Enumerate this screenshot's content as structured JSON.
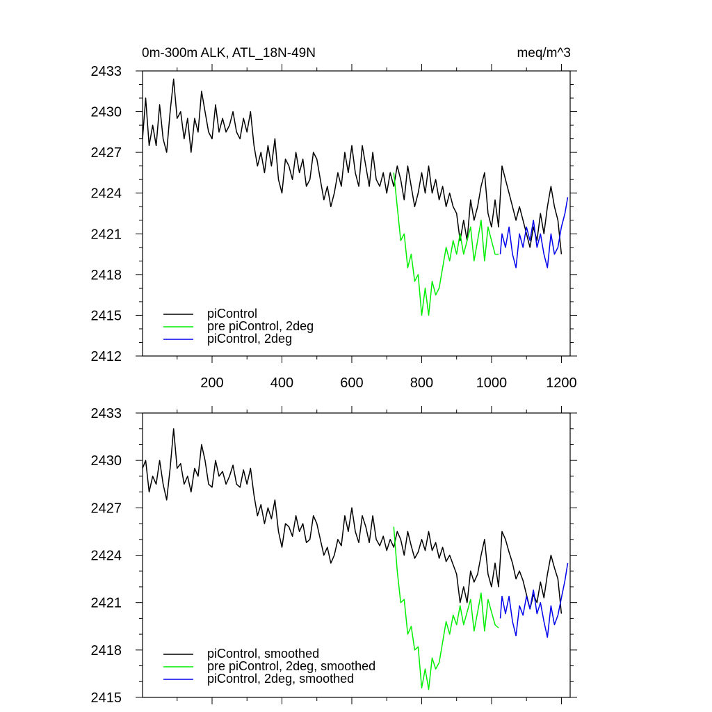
{
  "colors": {
    "pic": "#000000",
    "pre": "#00ee00",
    "pic2": "#0000ee",
    "axis": "#000000"
  },
  "chart_data": [
    {
      "type": "line",
      "title": "0m-300m ALK, ATL_18N-49N",
      "units": "meq/m^3",
      "xlim": [
        1,
        1225
      ],
      "ylim": [
        2412,
        2433
      ],
      "xticks": [
        200,
        400,
        600,
        800,
        1000,
        1200
      ],
      "xtick_labels": [
        "200",
        "400",
        "600",
        "800",
        "1000",
        "1200"
      ],
      "yticks": [
        2412,
        2415,
        2418,
        2421,
        2424,
        2427,
        2430,
        2433
      ],
      "ytick_labels": [
        "2412",
        "2415",
        "2418",
        "2421",
        "2424",
        "2427",
        "2430",
        "2433"
      ],
      "legend": [
        "piControl",
        "pre piControl, 2deg",
        "piControl, 2deg"
      ],
      "legend_position": "bottom-left",
      "series": [
        {
          "name": "piControl",
          "color": "#000000",
          "x": [
            1,
            10,
            20,
            30,
            40,
            50,
            60,
            70,
            80,
            90,
            100,
            110,
            120,
            130,
            140,
            150,
            160,
            170,
            180,
            190,
            200,
            210,
            220,
            230,
            240,
            250,
            260,
            270,
            280,
            290,
            300,
            310,
            320,
            330,
            340,
            350,
            360,
            370,
            380,
            390,
            400,
            410,
            420,
            430,
            440,
            450,
            460,
            470,
            480,
            490,
            500,
            510,
            520,
            530,
            540,
            550,
            560,
            570,
            580,
            590,
            600,
            610,
            620,
            630,
            640,
            650,
            660,
            670,
            680,
            690,
            700,
            710,
            720,
            730,
            740,
            750,
            760,
            770,
            780,
            790,
            800,
            810,
            820,
            830,
            840,
            850,
            860,
            870,
            880,
            890,
            900,
            910,
            920,
            930,
            940,
            950,
            960,
            970,
            980,
            990,
            1000,
            1010,
            1020,
            1030,
            1040,
            1050,
            1060,
            1070,
            1080,
            1090,
            1100,
            1110,
            1120,
            1130,
            1140,
            1150,
            1160,
            1170,
            1180,
            1190,
            1200
          ],
          "y": [
            2428.0,
            2431.0,
            2427.5,
            2429.0,
            2427.5,
            2430.5,
            2428.0,
            2427.0,
            2430.0,
            2432.4,
            2429.5,
            2430.0,
            2428.0,
            2429.5,
            2427.0,
            2429.5,
            2428.5,
            2431.5,
            2430.0,
            2428.5,
            2428.0,
            2430.5,
            2428.5,
            2429.5,
            2428.5,
            2429.0,
            2430.0,
            2428.5,
            2428.0,
            2429.5,
            2428.5,
            2430.0,
            2427.5,
            2426.0,
            2427.0,
            2425.5,
            2427.5,
            2426.0,
            2428.0,
            2425.0,
            2424.0,
            2426.5,
            2426.0,
            2425.0,
            2427.0,
            2425.5,
            2426.5,
            2424.5,
            2425.0,
            2427.0,
            2426.5,
            2425.0,
            2423.5,
            2424.5,
            2423.0,
            2424.0,
            2425.5,
            2424.5,
            2427.0,
            2425.5,
            2427.5,
            2425.5,
            2424.5,
            2427.5,
            2426.0,
            2424.5,
            2427.0,
            2425.0,
            2424.5,
            2425.5,
            2424.0,
            2425.5,
            2424.5,
            2426.0,
            2425.0,
            2423.5,
            2426.0,
            2424.5,
            2423.0,
            2424.0,
            2425.5,
            2424.0,
            2426.0,
            2424.0,
            2425.0,
            2423.5,
            2424.5,
            2423.0,
            2424.0,
            2423.0,
            2422.5,
            2420.5,
            2422.0,
            2420.5,
            2423.5,
            2422.0,
            2423.0,
            2424.5,
            2425.5,
            2422.5,
            2421.5,
            2423.5,
            2421.5,
            2426.0,
            2425.0,
            2424.0,
            2423.0,
            2422.0,
            2423.0,
            2422.0,
            2421.0,
            2420.0,
            2421.5,
            2420.5,
            2422.5,
            2421.0,
            2423.0,
            2424.5,
            2423.0,
            2422.0,
            2419.5
          ]
        },
        {
          "name": "pre piControl, 2deg",
          "color": "#00ee00",
          "x": [
            720,
            730,
            740,
            750,
            760,
            770,
            780,
            790,
            800,
            810,
            820,
            830,
            840,
            850,
            860,
            870,
            880,
            890,
            900,
            910,
            920,
            930,
            940,
            950,
            960,
            970,
            980,
            990,
            1000,
            1010,
            1020
          ],
          "y": [
            2425.5,
            2423.0,
            2420.5,
            2421.0,
            2418.5,
            2419.5,
            2417.5,
            2418.0,
            2415.0,
            2417.0,
            2415.0,
            2417.5,
            2416.5,
            2417.0,
            2418.5,
            2420.0,
            2419.0,
            2420.5,
            2419.5,
            2421.0,
            2419.5,
            2420.5,
            2421.5,
            2419.0,
            2420.5,
            2422.0,
            2419.0,
            2421.5,
            2420.5,
            2419.5,
            2419.5
          ]
        },
        {
          "name": "piControl, 2deg",
          "color": "#0000ee",
          "x": [
            1025,
            1030,
            1040,
            1050,
            1060,
            1070,
            1080,
            1090,
            1100,
            1110,
            1120,
            1130,
            1140,
            1150,
            1160,
            1170,
            1180,
            1190,
            1200,
            1210,
            1218
          ],
          "y": [
            2419.5,
            2421.0,
            2420.0,
            2421.5,
            2419.5,
            2418.5,
            2421.0,
            2420.0,
            2421.5,
            2420.5,
            2422.0,
            2420.0,
            2421.0,
            2419.5,
            2418.5,
            2421.0,
            2419.5,
            2420.0,
            2421.5,
            2422.5,
            2423.7
          ]
        }
      ]
    },
    {
      "type": "line",
      "title": "",
      "units": "",
      "xlim": [
        1,
        1225
      ],
      "ylim": [
        2415,
        2433
      ],
      "xticks": [
        200,
        400,
        600,
        800,
        1000,
        1200
      ],
      "xtick_labels": [],
      "yticks": [
        2415,
        2418,
        2421,
        2424,
        2427,
        2430,
        2433
      ],
      "ytick_labels": [
        "2415",
        "2418",
        "2421",
        "2424",
        "2427",
        "2430",
        "2433"
      ],
      "legend": [
        "piControl, smoothed",
        "pre piControl, 2deg, smoothed",
        "piControl, 2deg, smoothed"
      ],
      "legend_position": "bottom-left",
      "series": [
        {
          "name": "piControl, smoothed",
          "color": "#000000",
          "x": [
            1,
            10,
            20,
            30,
            40,
            50,
            60,
            70,
            80,
            90,
            100,
            110,
            120,
            130,
            140,
            150,
            160,
            170,
            180,
            190,
            200,
            210,
            220,
            230,
            240,
            250,
            260,
            270,
            280,
            290,
            300,
            310,
            320,
            330,
            340,
            350,
            360,
            370,
            380,
            390,
            400,
            410,
            420,
            430,
            440,
            450,
            460,
            470,
            480,
            490,
            500,
            510,
            520,
            530,
            540,
            550,
            560,
            570,
            580,
            590,
            600,
            610,
            620,
            630,
            640,
            650,
            660,
            670,
            680,
            690,
            700,
            710,
            720,
            730,
            740,
            750,
            760,
            770,
            780,
            790,
            800,
            810,
            820,
            830,
            840,
            850,
            860,
            870,
            880,
            890,
            900,
            910,
            920,
            930,
            940,
            950,
            960,
            970,
            980,
            990,
            1000,
            1010,
            1020,
            1030,
            1040,
            1050,
            1060,
            1070,
            1080,
            1090,
            1100,
            1110,
            1120,
            1130,
            1140,
            1150,
            1160,
            1170,
            1180,
            1190,
            1200
          ],
          "y": [
            2429.5,
            2430.0,
            2428.0,
            2429.0,
            2428.5,
            2430.0,
            2428.5,
            2427.5,
            2429.5,
            2432.0,
            2429.5,
            2429.8,
            2428.5,
            2429.0,
            2428.0,
            2429.5,
            2429.0,
            2431.0,
            2430.0,
            2428.5,
            2428.3,
            2430.0,
            2429.0,
            2429.3,
            2428.5,
            2429.0,
            2429.7,
            2428.5,
            2428.3,
            2429.4,
            2428.5,
            2429.5,
            2427.8,
            2426.5,
            2427.2,
            2426.0,
            2427.0,
            2426.3,
            2427.5,
            2425.5,
            2424.5,
            2426.0,
            2425.8,
            2425.2,
            2426.5,
            2425.5,
            2426.0,
            2424.8,
            2425.0,
            2426.5,
            2426.0,
            2425.0,
            2424.0,
            2424.5,
            2423.5,
            2424.0,
            2425.0,
            2424.6,
            2426.5,
            2425.5,
            2427.0,
            2425.5,
            2424.8,
            2426.5,
            2425.8,
            2424.8,
            2426.5,
            2425.0,
            2424.6,
            2425.2,
            2424.3,
            2425.0,
            2424.5,
            2425.5,
            2425.0,
            2424.0,
            2425.5,
            2424.6,
            2423.8,
            2424.2,
            2425.0,
            2424.3,
            2425.5,
            2424.3,
            2424.8,
            2423.8,
            2424.5,
            2423.6,
            2424.0,
            2423.4,
            2422.8,
            2421.0,
            2422.0,
            2421.0,
            2423.0,
            2422.3,
            2422.8,
            2424.0,
            2425.0,
            2422.8,
            2422.0,
            2423.5,
            2422.0,
            2425.5,
            2425.0,
            2424.2,
            2423.5,
            2422.5,
            2423.0,
            2422.4,
            2421.5,
            2420.6,
            2421.5,
            2421.0,
            2422.3,
            2421.3,
            2422.8,
            2424.0,
            2423.2,
            2422.5,
            2420.3
          ]
        },
        {
          "name": "pre piControl, 2deg, smoothed",
          "color": "#00ee00",
          "x": [
            720,
            730,
            740,
            750,
            760,
            770,
            780,
            790,
            800,
            810,
            820,
            830,
            840,
            850,
            860,
            870,
            880,
            890,
            900,
            910,
            920,
            930,
            940,
            950,
            960,
            970,
            980,
            990,
            1000,
            1010,
            1020
          ],
          "y": [
            2425.8,
            2423.0,
            2421.0,
            2421.2,
            2419.0,
            2419.5,
            2418.0,
            2418.2,
            2415.6,
            2416.8,
            2415.5,
            2417.5,
            2416.8,
            2417.2,
            2418.5,
            2419.8,
            2419.0,
            2420.2,
            2419.6,
            2420.8,
            2419.6,
            2420.4,
            2421.2,
            2419.2,
            2420.4,
            2421.6,
            2419.2,
            2421.2,
            2420.4,
            2419.6,
            2419.4
          ]
        },
        {
          "name": "piControl, 2deg, smoothed",
          "color": "#0000ee",
          "x": [
            1025,
            1030,
            1040,
            1050,
            1060,
            1070,
            1080,
            1090,
            1100,
            1110,
            1120,
            1130,
            1140,
            1150,
            1160,
            1170,
            1180,
            1190,
            1200,
            1210,
            1218
          ],
          "y": [
            2420.0,
            2421.4,
            2420.3,
            2421.4,
            2419.8,
            2418.9,
            2420.8,
            2420.2,
            2421.4,
            2420.6,
            2421.8,
            2420.3,
            2421.0,
            2419.8,
            2418.8,
            2420.8,
            2419.6,
            2420.2,
            2421.3,
            2422.4,
            2423.5
          ]
        }
      ]
    }
  ]
}
